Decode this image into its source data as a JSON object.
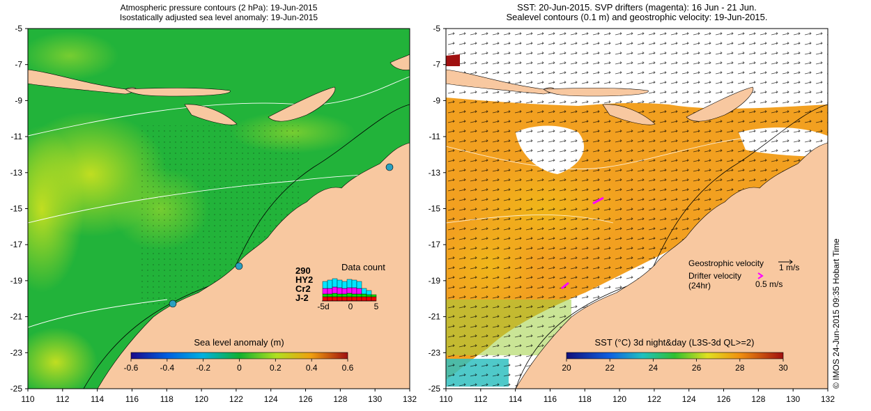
{
  "left_map": {
    "title_line1": "Atmospheric pressure contours (2 hPa): 19-Jun-2015",
    "title_line2": "Isostatically adjusted sea level anomaly: 19-Jun-2015",
    "colorbar_label": "Sea level anomaly (m)",
    "colorbar_ticks": [
      "-0.6",
      "-0.4",
      "-0.2",
      "0",
      "0.2",
      "0.4",
      "0.6"
    ],
    "colorbar_range": [
      -0.6,
      0.6
    ],
    "y_ticks": [
      "-5",
      "-7",
      "-9",
      "-11",
      "-13",
      "-15",
      "-17",
      "-19",
      "-21",
      "-23",
      "-25"
    ],
    "x_ticks": [
      "110",
      "112",
      "114",
      "116",
      "118",
      "120",
      "122",
      "124",
      "126",
      "128",
      "130",
      "132"
    ],
    "data_count": {
      "title": "Data count",
      "satellites": [
        {
          "name": "290",
          "color": "#00e5ff"
        },
        {
          "name": "HY2",
          "color": "#ff00ff"
        },
        {
          "name": "Cr2",
          "color": "#00dd00"
        },
        {
          "name": "J-2",
          "color": "#ee0000"
        }
      ],
      "axis_ticks": [
        "-5d",
        "0",
        "5"
      ]
    }
  },
  "right_map": {
    "title_line1": "SST: 20-Jun-2015. SVP drifters (magenta): 16 Jun - 21 Jun.",
    "title_line2": "Sealevel contours (0.1 m) and geostrophic velocity: 19-Jun-2015.",
    "colorbar_label": "SST (°C) 3d night&day (L3S-3d QL>=2)",
    "colorbar_ticks": [
      "20",
      "22",
      "24",
      "26",
      "28",
      "30"
    ],
    "colorbar_range": [
      20,
      30
    ],
    "y_ticks": [
      "-5",
      "-7",
      "-9",
      "-11",
      "-13",
      "-15",
      "-17",
      "-19",
      "-21",
      "-23",
      "-25"
    ],
    "x_ticks": [
      "110",
      "112",
      "114",
      "116",
      "118",
      "120",
      "122",
      "124",
      "126",
      "128",
      "130",
      "132"
    ],
    "legend": {
      "geostrophic_label": "Geostrophic velocity",
      "geostrophic_scale": "1 m/s",
      "drifter_label_line1": "Drifter velocity",
      "drifter_label_line2": "(24hr)",
      "drifter_scale": "0.5 m/s"
    }
  },
  "credit": "© IMOS 24-Jun-2015 09:35 Hobart Time",
  "colors": {
    "land": "#f8c8a0",
    "sla_ocean": "#22b33a",
    "sst_ocean": "#f2a020",
    "drifter": "#ff00ff"
  }
}
